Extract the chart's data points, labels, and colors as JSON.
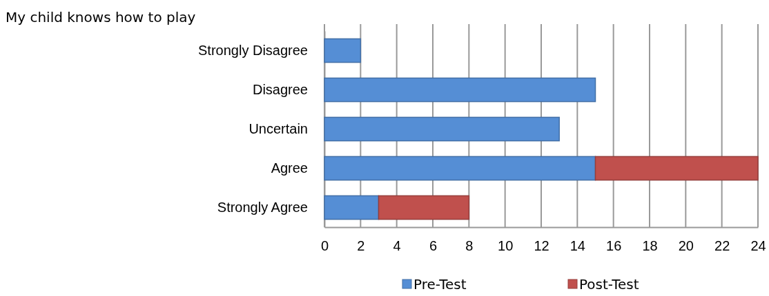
{
  "chart_data": {
    "type": "bar",
    "title": "My child knows how to play",
    "orientation": "horizontal",
    "stacked": true,
    "categories": [
      "Strongly Disagree",
      "Disagree",
      "Uncertain",
      "Agree",
      "Strongly Agree"
    ],
    "series": [
      {
        "name": "Pre-Test",
        "color": "#558ed5",
        "values": [
          2,
          15,
          13,
          15,
          3
        ]
      },
      {
        "name": "Post-Test",
        "color": "#c0504d",
        "values": [
          null,
          null,
          null,
          9,
          5
        ]
      }
    ],
    "xlim": [
      0,
      24
    ],
    "xticks": [
      0,
      2,
      4,
      6,
      8,
      10,
      12,
      14,
      16,
      18,
      20,
      22,
      24
    ],
    "grid": "x",
    "legend": "bottom"
  }
}
